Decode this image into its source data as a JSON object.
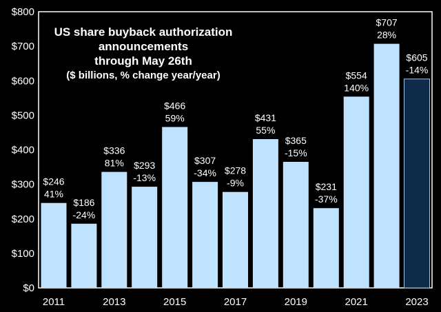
{
  "chart_data": {
    "type": "bar",
    "title_lines": [
      "US share buyback authorization",
      "announcements",
      "through May 26th"
    ],
    "subtitle": "($ billions, % change year/year)",
    "categories": [
      "2011",
      "2012",
      "2013",
      "2014",
      "2015",
      "2016",
      "2017",
      "2018",
      "2019",
      "2020",
      "2021",
      "2022",
      "2023"
    ],
    "values": [
      246,
      186,
      336,
      293,
      466,
      307,
      278,
      431,
      365,
      231,
      554,
      707,
      605
    ],
    "value_labels": [
      "$246",
      "$186",
      "$336",
      "$293",
      "$466",
      "$307",
      "$278",
      "$431",
      "$365",
      "$231",
      "$554",
      "$707",
      "$605"
    ],
    "pct_labels": [
      "41%",
      "-24%",
      "81%",
      "-13%",
      "59%",
      "-34%",
      "-9%",
      "55%",
      "-15%",
      "-37%",
      "140%",
      "28%",
      "-14%"
    ],
    "xtick_labels": [
      "2011",
      "2013",
      "2015",
      "2017",
      "2019",
      "2021",
      "2023"
    ],
    "xtick_categories": [
      "2011",
      "2013",
      "2015",
      "2017",
      "2019",
      "2021",
      "2023"
    ],
    "ytick_values": [
      0,
      100,
      200,
      300,
      400,
      500,
      600,
      700,
      800
    ],
    "ytick_labels": [
      "$0",
      "$100",
      "$200",
      "$300",
      "$400",
      "$500",
      "$600",
      "$700",
      "$800"
    ],
    "ylim": [
      0,
      800
    ],
    "xlabel": "",
    "ylabel": "",
    "colors": {
      "bar": "#bfe3ff",
      "highlight": "#0f2b4a",
      "background": "#000000",
      "text": "#ffffff"
    },
    "highlight_index": 12
  }
}
